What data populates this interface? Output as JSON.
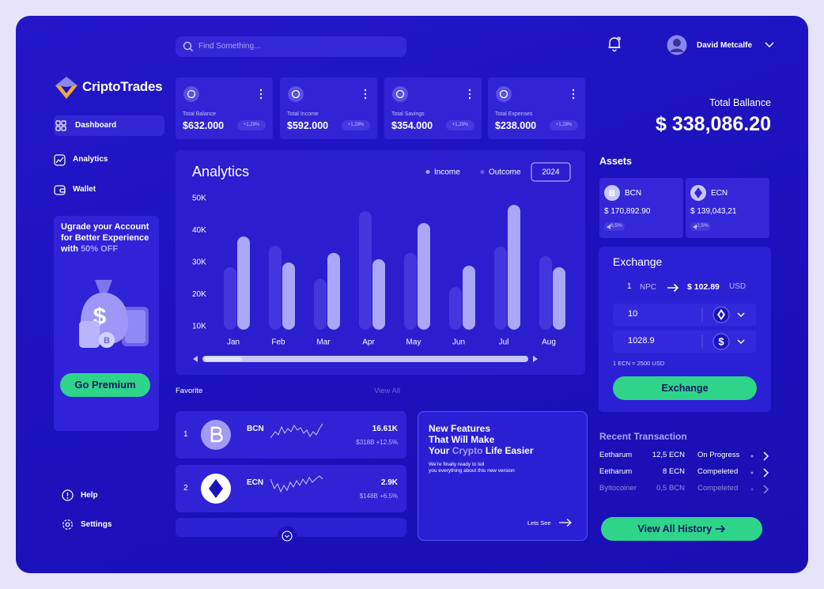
{
  "search_placeholder": "Find Something...",
  "user": {
    "name": "David Metcalfe"
  },
  "brand": "CriptoTrades",
  "nav": [
    "Dashboard",
    "Analytics",
    "Wallet"
  ],
  "promo": {
    "text": "Ugrade your Account for Better Experience with",
    "highlight": "50% OFF",
    "button": "Go Premium"
  },
  "footer_nav": [
    "Help",
    "Settings"
  ],
  "stats": [
    {
      "label": "Total Balance",
      "value": "$632.000",
      "change": "+1,29%"
    },
    {
      "label": "Total Income",
      "value": "$592.000",
      "change": "+1,29%"
    },
    {
      "label": "Total Savings",
      "value": "$354.000",
      "change": "+1,29%"
    },
    {
      "label": "Total Expenses",
      "value": "$238.000",
      "change": "+1,29%"
    }
  ],
  "chart_data": {
    "type": "bar",
    "title": "Analytics",
    "period": "2024",
    "categories": [
      "Jan",
      "Feb",
      "Mar",
      "Apr",
      "May",
      "Jun",
      "Jul",
      "Aug"
    ],
    "series": [
      {
        "name": "Income",
        "color": "#aaa6f8",
        "values": [
          38100,
          30000,
          33000,
          31000,
          42300,
          29000,
          48000,
          28500
        ]
      },
      {
        "name": "Outcome",
        "color": "#4336dc",
        "values": [
          28500,
          35200,
          24900,
          46000,
          33000,
          22300,
          35000,
          32000
        ]
      }
    ],
    "ylim": [
      9000,
      50000
    ],
    "yticks": [
      {
        "value": 10000,
        "label": "10K"
      },
      {
        "value": 20000,
        "label": "20K"
      },
      {
        "value": 30000,
        "label": "30K"
      },
      {
        "value": 40000,
        "label": "40K"
      },
      {
        "value": 50000,
        "label": "50K"
      }
    ],
    "grid": false
  },
  "favorite": {
    "title": "Favorite",
    "view_all": "View All",
    "items": [
      {
        "rank": 1,
        "symbol": "BCN",
        "price": "16.61K",
        "sub": "$318B +12.5%"
      },
      {
        "rank": 2,
        "symbol": "ECN",
        "price": "2.9K",
        "sub": "$148B +6.5%"
      }
    ]
  },
  "news": {
    "title_1": "New Features",
    "title_2": "That Will Make",
    "title_3": "Your",
    "highlight": "Crypto",
    "title_4": "Life Easier",
    "body_1": "We're finally ready to tell",
    "body_2": "you everything about this new version",
    "link": "Lets See"
  },
  "balance": {
    "label": "Total Ballance",
    "value": "$ 338,086.20"
  },
  "assets": {
    "title": "Assets",
    "items": [
      {
        "symbol": "BCN",
        "value": "$ 170,892.90",
        "change": "6,5%"
      },
      {
        "symbol": "ECN",
        "value": "$ 139,043,21",
        "change": "2,5%"
      }
    ]
  },
  "exchange": {
    "title": "Exchange",
    "from_amount": 1,
    "from_unit": "NPC",
    "to_amount": "$ 102.89",
    "to_unit": "USD",
    "input_1": 10,
    "input_2": 1028.9,
    "note": "1 ECN = 2500 USD",
    "button": "Exchange"
  },
  "transactions": {
    "title": "Recent Transaction",
    "rows": [
      [
        "Eetharum",
        "12,5 ECN",
        "On Progress"
      ],
      [
        "Eetharum",
        "8 ECN",
        "Compeleted"
      ],
      [
        "Byitocoiner",
        "0,5 BCN",
        "Compeleted"
      ]
    ],
    "button": "View All History"
  }
}
